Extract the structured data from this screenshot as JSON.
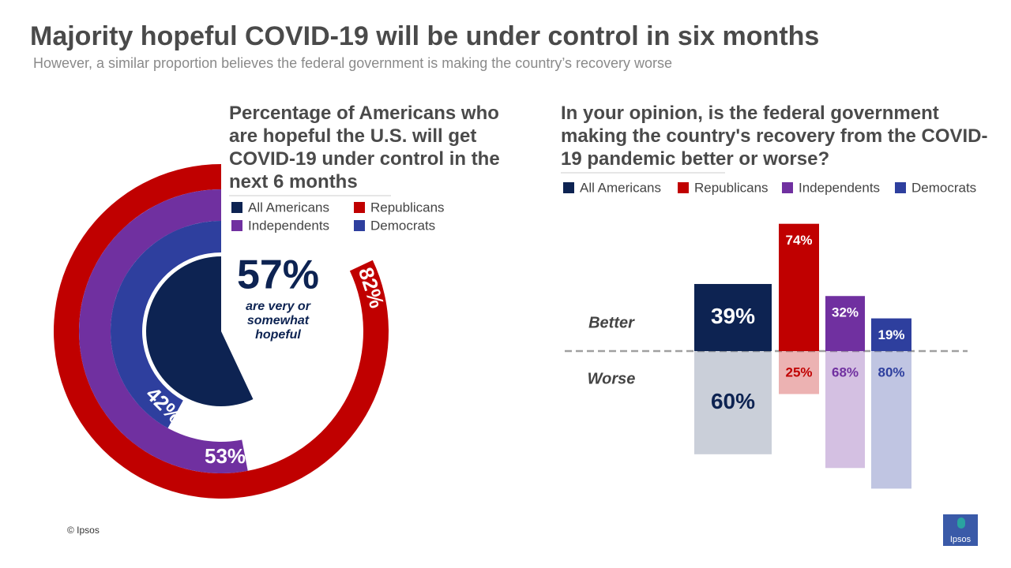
{
  "header": {
    "title": "Majority hopeful COVID-19 will be under control in six months",
    "subtitle": "However, a similar proportion believes the federal government  is making  the country’s recovery worse"
  },
  "chart_data": [
    {
      "type": "radial_bar",
      "title": "Percentage of Americans who are hopeful the U.S. will get COVID-19 under control in the next 6 months",
      "annotation": "are very or somewhat hopeful",
      "series": [
        {
          "name": "All Americans",
          "color": "#0d2352",
          "values": [
            57
          ],
          "value_labels": [
            "57%"
          ]
        },
        {
          "name": "Republicans",
          "color": "#c00000",
          "values": [
            82
          ],
          "value_labels": [
            "82%"
          ]
        },
        {
          "name": "Independents",
          "color": "#7030a0",
          "values": [
            53
          ],
          "value_labels": [
            "53%"
          ]
        },
        {
          "name": "Democrats",
          "color": "#2e3f9e",
          "values": [
            42
          ],
          "value_labels": [
            "42%"
          ]
        }
      ]
    },
    {
      "type": "diverging_bar",
      "title": "In your opinion, is the federal government making the country's recovery from the COVID-19 pandemic better or worse?",
      "categories": [
        "Better",
        "Worse"
      ],
      "series": [
        {
          "name": "All Americans",
          "color": "#0d2352",
          "values": [
            39,
            60
          ],
          "value_labels": [
            "39%",
            "60%"
          ]
        },
        {
          "name": "Republicans",
          "color": "#c00000",
          "values": [
            74,
            25
          ],
          "value_labels": [
            "74%",
            "25%"
          ]
        },
        {
          "name": "Independents",
          "color": "#7030a0",
          "values": [
            32,
            68
          ],
          "value_labels": [
            "32%",
            "68%"
          ]
        },
        {
          "name": "Democrats",
          "color": "#2e3f9e",
          "values": [
            19,
            80
          ],
          "value_labels": [
            "19%",
            "80%"
          ]
        }
      ]
    }
  ],
  "footer": "© Ipsos",
  "logo": "Ipsos"
}
